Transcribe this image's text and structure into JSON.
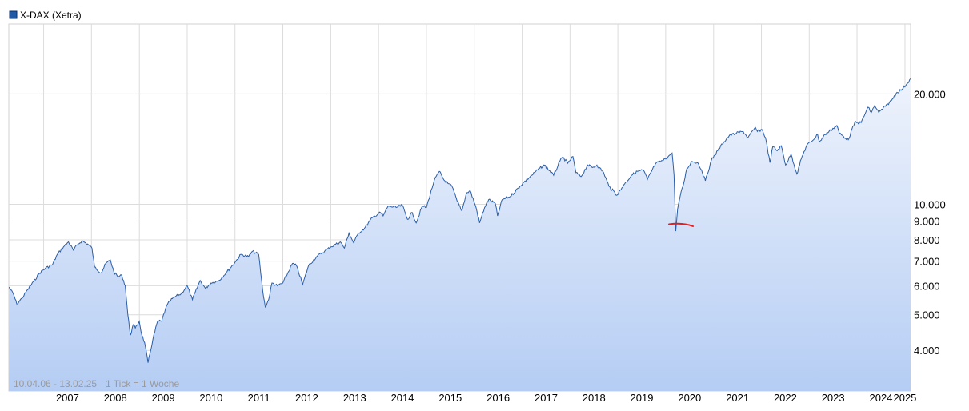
{
  "chart_data": {
    "type": "area",
    "legend": {
      "label": "X-DAX (Xetra)",
      "color": "#1f5aa6"
    },
    "footer": {
      "range": "10.04.06 - 13.02.25",
      "tick_info": "1 Tick = 1 Woche"
    },
    "x_tick_labels": [
      "2007",
      "2008",
      "2009",
      "2010",
      "2011",
      "2012",
      "2013",
      "2014",
      "2015",
      "2016",
      "2017",
      "2018",
      "2019",
      "2020",
      "2021",
      "2022",
      "2023",
      "2024",
      "2025"
    ],
    "y_tick_labels": [
      {
        "value": 20000,
        "label": "20.000"
      },
      {
        "value": 10000,
        "label": "10.000"
      },
      {
        "value": 9000,
        "label": "9.000"
      },
      {
        "value": 8000,
        "label": "8.000"
      },
      {
        "value": 7000,
        "label": "7.000"
      },
      {
        "value": 6000,
        "label": "6.000"
      },
      {
        "value": 5000,
        "label": "5.000"
      },
      {
        "value": 4000,
        "label": "4.000"
      }
    ],
    "y_scale": "log",
    "grid": true,
    "xlim": [
      "2006-04-10",
      "2025-02-13"
    ],
    "ylim": [
      3100,
      31000
    ],
    "colors": {
      "line": "#2a5ea8",
      "fill_top": "#eef3fc",
      "fill_bottom": "#b5cdf4",
      "grid": "#dcdcdc",
      "annotation": "#e02020"
    },
    "series": [
      {
        "x": [
          "2006-04-10",
          "2006-05-15",
          "2006-06-10",
          "2006-07-20",
          "2006-09-01",
          "2006-10-15",
          "2006-12-01",
          "2007-01-15",
          "2007-03-10",
          "2007-04-15",
          "2007-06-01",
          "2007-07-10",
          "2007-08-15",
          "2007-09-15",
          "2007-10-20",
          "2007-12-01",
          "2008-01-05",
          "2008-01-25",
          "2008-03-15",
          "2008-04-20",
          "2008-05-25",
          "2008-06-20",
          "2008-07-20",
          "2008-08-20",
          "2008-09-15",
          "2008-10-05",
          "2008-10-25",
          "2008-11-15",
          "2008-12-01",
          "2008-12-31",
          "2009-01-20",
          "2009-02-10",
          "2009-03-08",
          "2009-04-15",
          "2009-05-20",
          "2009-06-20",
          "2009-07-20",
          "2009-08-20",
          "2009-10-01",
          "2009-11-15",
          "2010-01-01",
          "2010-02-10",
          "2010-04-10",
          "2010-05-20",
          "2010-07-01",
          "2010-09-01",
          "2010-11-01",
          "2011-01-01",
          "2011-02-15",
          "2011-04-15",
          "2011-05-15",
          "2011-07-01",
          "2011-08-01",
          "2011-08-20",
          "2011-09-15",
          "2011-10-10",
          "2011-11-20",
          "2012-01-01",
          "2012-03-15",
          "2012-04-15",
          "2012-06-01",
          "2012-07-15",
          "2012-09-15",
          "2012-11-15",
          "2013-01-01",
          "2013-03-15",
          "2013-04-15",
          "2013-05-20",
          "2013-06-25",
          "2013-08-01",
          "2013-09-15",
          "2013-11-15",
          "2014-01-15",
          "2014-02-05",
          "2014-03-15",
          "2014-05-15",
          "2014-07-01",
          "2014-08-10",
          "2014-09-15",
          "2014-10-15",
          "2014-12-01",
          "2015-01-01",
          "2015-03-01",
          "2015-04-10",
          "2015-05-15",
          "2015-06-15",
          "2015-07-15",
          "2015-08-24",
          "2015-09-29",
          "2015-11-01",
          "2015-12-01",
          "2016-01-15",
          "2016-02-11",
          "2016-03-20",
          "2016-04-20",
          "2016-06-10",
          "2016-06-27",
          "2016-08-01",
          "2016-10-01",
          "2016-12-15",
          "2017-01-15",
          "2017-03-15",
          "2017-05-15",
          "2017-06-20",
          "2017-08-29",
          "2017-10-15",
          "2017-11-07",
          "2017-12-15",
          "2018-01-23",
          "2018-02-15",
          "2018-03-26",
          "2018-05-15",
          "2018-06-20",
          "2018-07-25",
          "2018-09-15",
          "2018-10-25",
          "2018-12-27",
          "2019-02-15",
          "2019-04-15",
          "2019-05-30",
          "2019-07-15",
          "2019-08-15",
          "2019-10-15",
          "2019-12-15",
          "2020-01-20",
          "2020-02-19",
          "2020-03-05",
          "2020-03-18",
          "2020-04-01",
          "2020-04-20",
          "2020-05-20",
          "2020-06-10",
          "2020-07-20",
          "2020-09-01",
          "2020-10-01",
          "2020-10-30",
          "2020-12-15",
          "2021-02-01",
          "2021-03-20",
          "2021-05-01",
          "2021-06-15",
          "2021-08-15",
          "2021-09-20",
          "2021-11-17",
          "2021-12-01",
          "2022-01-05",
          "2022-02-01",
          "2022-03-07",
          "2022-03-29",
          "2022-05-01",
          "2022-06-01",
          "2022-07-05",
          "2022-08-15",
          "2022-09-29",
          "2022-11-01",
          "2022-12-13",
          "2023-01-15",
          "2023-03-06",
          "2023-03-20",
          "2023-05-01",
          "2023-07-31",
          "2023-08-20",
          "2023-10-26",
          "2023-12-14",
          "2024-02-01",
          "2024-03-25",
          "2024-04-19",
          "2024-05-15",
          "2024-06-15",
          "2024-08-05",
          "2024-09-20",
          "2024-11-01",
          "2024-12-10",
          "2025-01-15",
          "2025-02-13"
        ],
        "y": [
          5950,
          5700,
          5350,
          5550,
          5850,
          6150,
          6500,
          6700,
          6850,
          7300,
          7650,
          7900,
          7500,
          7750,
          7950,
          7800,
          7600,
          6750,
          6500,
          6900,
          7050,
          6550,
          6350,
          6400,
          6000,
          5000,
          4400,
          4700,
          4600,
          4800,
          4400,
          4200,
          3700,
          4300,
          4800,
          4800,
          5200,
          5450,
          5600,
          5700,
          6000,
          5500,
          6200,
          5900,
          6100,
          6200,
          6550,
          6950,
          7300,
          7200,
          7450,
          7300,
          5800,
          5250,
          5500,
          6100,
          6000,
          6100,
          6900,
          6800,
          6050,
          6800,
          7200,
          7450,
          7650,
          7900,
          7600,
          8350,
          7850,
          8350,
          8600,
          9200,
          9500,
          9300,
          9900,
          9800,
          9950,
          9100,
          9500,
          8900,
          9900,
          9800,
          11600,
          12300,
          11650,
          11400,
          11200,
          10200,
          9600,
          10700,
          10900,
          9800,
          8900,
          9800,
          10300,
          10050,
          9300,
          10300,
          10500,
          11200,
          11500,
          12000,
          12550,
          12800,
          12000,
          13100,
          13450,
          12950,
          13500,
          12200,
          11900,
          12800,
          12600,
          12800,
          12200,
          11200,
          10600,
          11300,
          12000,
          12300,
          12400,
          11700,
          12900,
          13200,
          13500,
          13800,
          12000,
          8450,
          9700,
          10500,
          11500,
          12500,
          13100,
          13000,
          12400,
          11600,
          13200,
          14000,
          14800,
          15400,
          15600,
          15800,
          15200,
          16200,
          15800,
          16000,
          15200,
          13000,
          14400,
          14000,
          14450,
          12800,
          13700,
          12100,
          13300,
          14500,
          14800,
          15500,
          14800,
          15500,
          16400,
          15600,
          15000,
          16700,
          16700,
          18400,
          17800,
          18600,
          17800,
          18500,
          19200,
          20200,
          20600,
          21300,
          22000
        ]
      }
    ]
  }
}
